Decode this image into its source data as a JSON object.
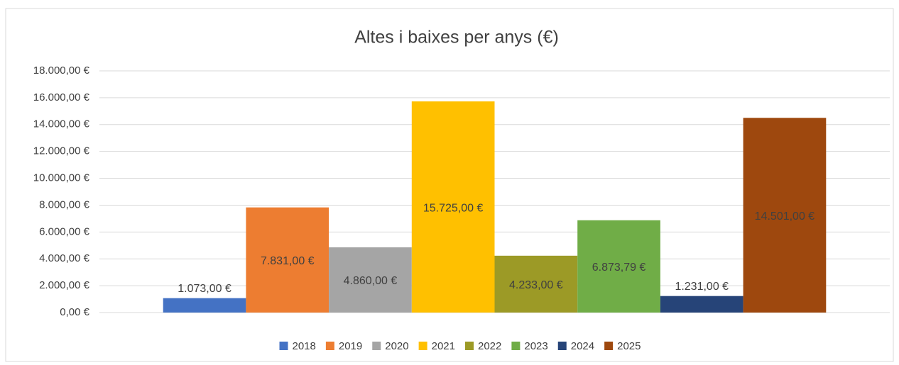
{
  "chart_data": {
    "type": "bar",
    "title": "Altes i baixes per anys (€)",
    "ylim": [
      0,
      18000
    ],
    "yticks": [
      {
        "value": 0,
        "label": "0,00 €"
      },
      {
        "value": 2000,
        "label": "2.000,00 €"
      },
      {
        "value": 4000,
        "label": "4.000,00 €"
      },
      {
        "value": 6000,
        "label": "6.000,00 €"
      },
      {
        "value": 8000,
        "label": "8.000,00 €"
      },
      {
        "value": 10000,
        "label": "10.000,00 €"
      },
      {
        "value": 12000,
        "label": "12.000,00 €"
      },
      {
        "value": 14000,
        "label": "14.000,00 €"
      },
      {
        "value": 16000,
        "label": "16.000,00 €"
      },
      {
        "value": 18000,
        "label": "18.000,00 €"
      }
    ],
    "grid": true,
    "legend": "bottom",
    "series": [
      {
        "name": "2018",
        "color": "#4472c4",
        "values": [
          1073
        ],
        "value_labels": [
          "1.073,00 €"
        ]
      },
      {
        "name": "2019",
        "color": "#ed7d31",
        "values": [
          7831
        ],
        "value_labels": [
          "7.831,00 €"
        ]
      },
      {
        "name": "2020",
        "color": "#a5a5a5",
        "values": [
          4860
        ],
        "value_labels": [
          "4.860,00 €"
        ]
      },
      {
        "name": "2021",
        "color": "#ffc000",
        "values": [
          15725
        ],
        "value_labels": [
          "15.725,00 €"
        ]
      },
      {
        "name": "2022",
        "color": "#9c9a26",
        "values": [
          4233
        ],
        "value_labels": [
          "4.233,00 €"
        ]
      },
      {
        "name": "2023",
        "color": "#70ad47",
        "values": [
          6873.79
        ],
        "value_labels": [
          "6.873,79 €"
        ]
      },
      {
        "name": "2024",
        "color": "#264478",
        "values": [
          1231
        ],
        "value_labels": [
          "1.231,00 €"
        ]
      },
      {
        "name": "2025",
        "color": "#9e480e",
        "values": [
          14501
        ],
        "value_labels": [
          "14.501,00 €"
        ]
      }
    ]
  }
}
